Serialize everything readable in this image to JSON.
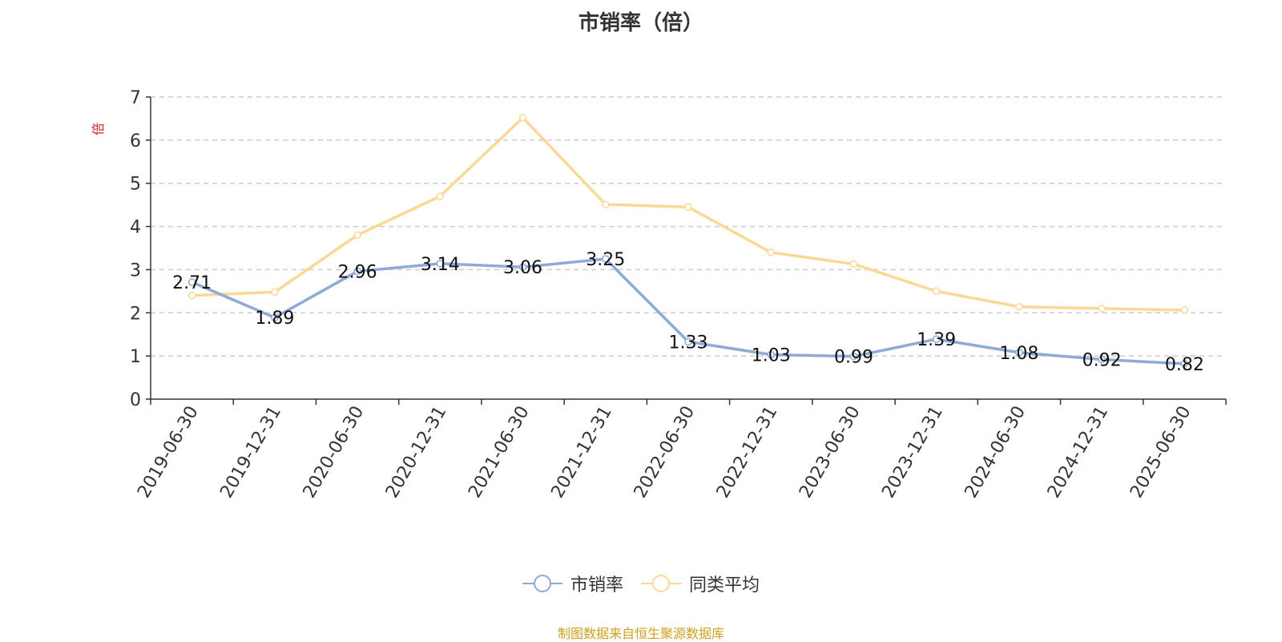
{
  "chart_data": {
    "type": "line",
    "title": "市销率（倍）",
    "ylabel": "倍",
    "xlabel": "",
    "ylim": [
      0,
      7
    ],
    "yticks": [
      0,
      1,
      2,
      3,
      4,
      5,
      6,
      7
    ],
    "grid": true,
    "legend_position": "bottom",
    "categories": [
      "2019-06-30",
      "2019-12-31",
      "2020-06-30",
      "2020-12-31",
      "2021-06-30",
      "2021-12-31",
      "2022-06-30",
      "2022-12-31",
      "2023-06-30",
      "2023-12-31",
      "2024-06-30",
      "2024-12-31",
      "2025-06-30"
    ],
    "series": [
      {
        "name": "市销率",
        "color": "#8eaad8",
        "values": [
          2.71,
          1.89,
          2.96,
          3.14,
          3.06,
          3.25,
          1.33,
          1.03,
          0.99,
          1.39,
          1.08,
          0.92,
          0.82
        ],
        "labels": [
          "2.71",
          "1.89",
          "2.96",
          "3.14",
          "3.06",
          "3.25",
          "1.33",
          "1.03",
          "0.99",
          "1.39",
          "1.08",
          "0.92",
          "0.82"
        ]
      },
      {
        "name": "同类平均",
        "color": "#fbd994",
        "values": [
          2.4,
          2.48,
          3.8,
          4.7,
          6.52,
          4.51,
          4.45,
          3.4,
          3.13,
          2.5,
          2.14,
          2.1,
          2.06
        ]
      }
    ]
  },
  "footer": "制图数据来自恒生聚源数据库",
  "colors": {
    "axis": "#333333",
    "grid": "#cccccc",
    "ylabel": "#e02020",
    "footer": "#d4a017"
  }
}
